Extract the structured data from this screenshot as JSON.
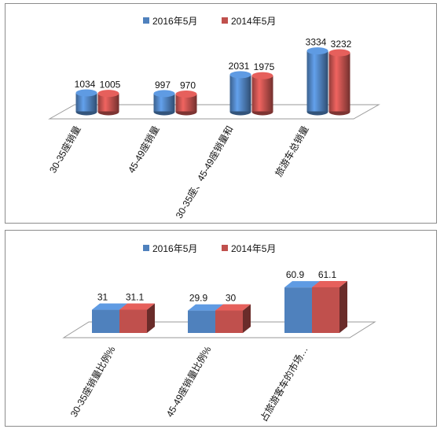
{
  "colors": {
    "series_a": "#4f81bd",
    "series_b": "#c0504d"
  },
  "chart_data": [
    {
      "type": "bar",
      "shape": "cylinder",
      "series": [
        {
          "name": "2016年5月",
          "values": [
            1034,
            997,
            2031,
            3334
          ]
        },
        {
          "name": "2014年5月",
          "values": [
            1005,
            970,
            1975,
            3232
          ]
        }
      ],
      "categories": [
        "30-35座销量",
        "45-49座销量",
        "30-35座、45-49座销量和",
        "旅游车总销量"
      ],
      "legend": "top-center",
      "grid": false
    },
    {
      "type": "bar",
      "shape": "box3d",
      "series": [
        {
          "name": "2016年5月",
          "values": [
            31,
            29.9,
            60.9
          ]
        },
        {
          "name": "2014年5月",
          "values": [
            31.1,
            30,
            61.1
          ]
        }
      ],
      "categories": [
        "30-35座销量比例%",
        "45-49座销量比例%",
        "占旅游客车的市场…"
      ],
      "legend": "top-center",
      "grid": false
    }
  ]
}
